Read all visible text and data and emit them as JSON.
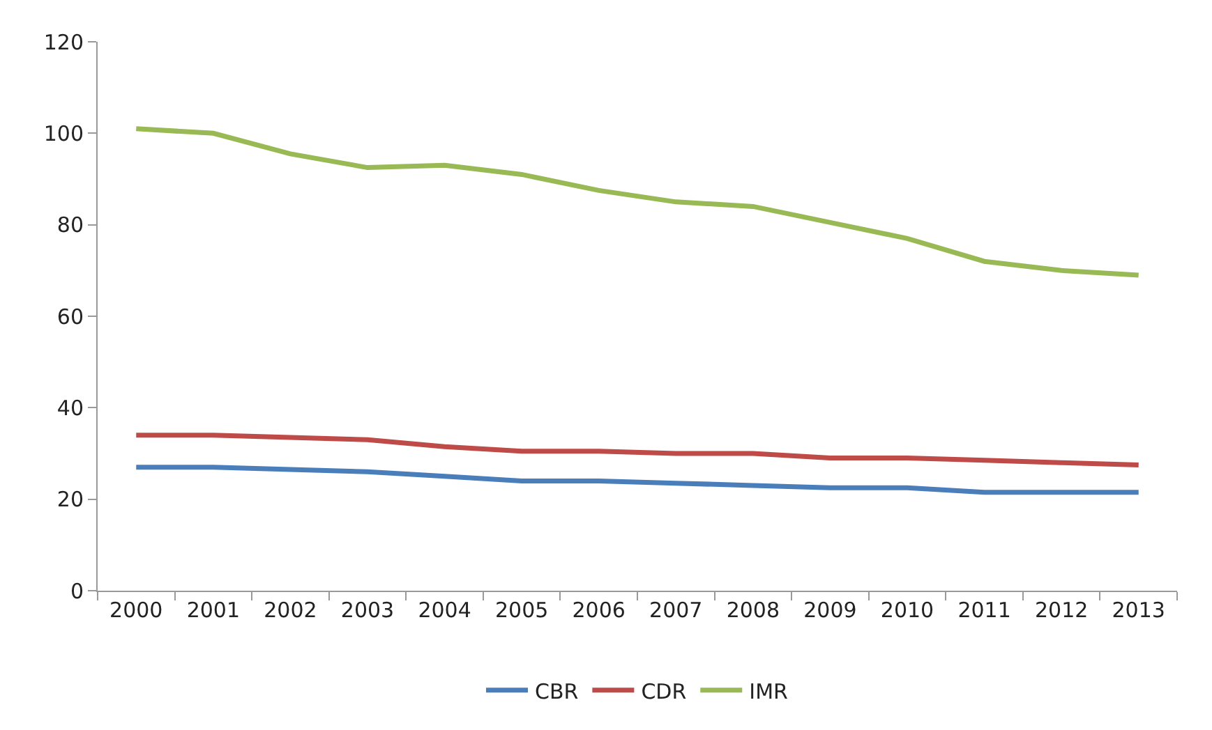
{
  "chart_data": {
    "type": "line",
    "categories": [
      "2000",
      "2001",
      "2002",
      "2003",
      "2004",
      "2005",
      "2006",
      "2007",
      "2008",
      "2009",
      "2010",
      "2011",
      "2012",
      "2013"
    ],
    "series": [
      {
        "name": "CBR",
        "color": "#4a7ebb",
        "values": [
          27,
          27,
          26.5,
          26,
          25,
          24,
          24,
          23.5,
          23,
          22.5,
          22.5,
          21.5,
          21.5,
          21.5
        ]
      },
      {
        "name": "CDR",
        "color": "#be4b48",
        "values": [
          34,
          34,
          33.5,
          33,
          31.5,
          30.5,
          30.5,
          30,
          30,
          29,
          29,
          28.5,
          28,
          27.5
        ]
      },
      {
        "name": "IMR",
        "color": "#98b954",
        "values": [
          101,
          100,
          95.5,
          92.5,
          93,
          91,
          87.5,
          85,
          84,
          80.5,
          77,
          72,
          70,
          69
        ]
      }
    ],
    "ylim": [
      0,
      120
    ],
    "yticks": [
      0,
      20,
      40,
      60,
      80,
      100,
      120
    ],
    "legend": "bottom",
    "marker": "none",
    "line_style": "solid"
  }
}
